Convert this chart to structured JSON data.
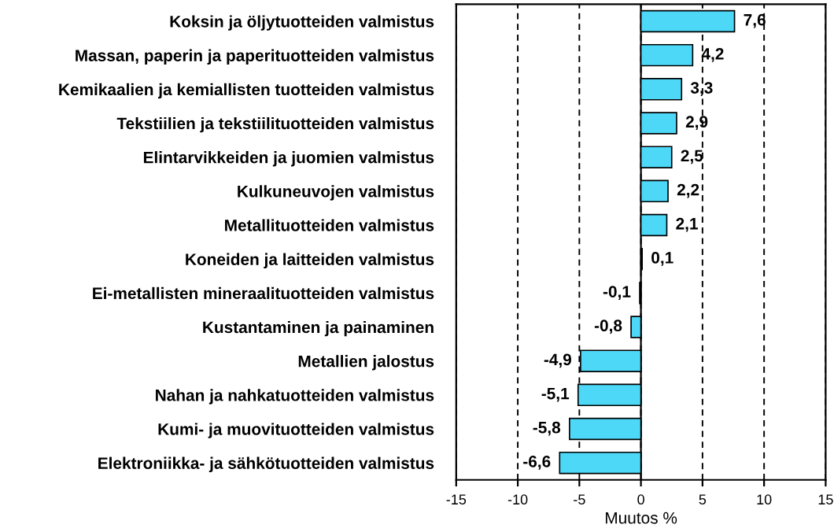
{
  "chart_data": {
    "type": "bar",
    "orientation": "horizontal",
    "xlabel": "Muutos %",
    "categories": [
      "Koksin ja öljytuotteiden valmistus",
      "Massan, paperin ja paperituotteiden valmistus",
      "Kemikaalien ja kemiallisten tuotteiden valmistus",
      "Tekstiilien ja tekstiilituotteiden valmistus",
      "Elintarvikkeiden ja juomien valmistus",
      "Kulkuneuvojen valmistus",
      "Metallituotteiden valmistus",
      "Koneiden ja laitteiden valmistus",
      "Ei-metallisten mineraalituotteiden valmistus",
      "Kustantaminen ja painaminen",
      "Metallien jalostus",
      "Nahan ja nahkatuotteiden valmistus",
      "Kumi- ja muovituotteiden valmistus",
      "Elektroniikka- ja sähkötuotteiden valmistus"
    ],
    "values": [
      7.6,
      4.2,
      3.3,
      2.9,
      2.5,
      2.2,
      2.1,
      0.1,
      -0.1,
      -0.8,
      -4.9,
      -5.1,
      -5.8,
      -6.6
    ],
    "value_labels": [
      "7,6",
      "4,2",
      "3,3",
      "2,9",
      "2,5",
      "2,2",
      "2,1",
      "0,1",
      "-0,1",
      "-0,8",
      "-4,9",
      "-5,1",
      "-5,8",
      "-6,6"
    ],
    "color": "#4dd8f8",
    "xlim": [
      -15,
      15
    ],
    "xticks": [
      -15,
      -10,
      -5,
      0,
      5,
      10,
      15
    ],
    "grid": "x"
  }
}
